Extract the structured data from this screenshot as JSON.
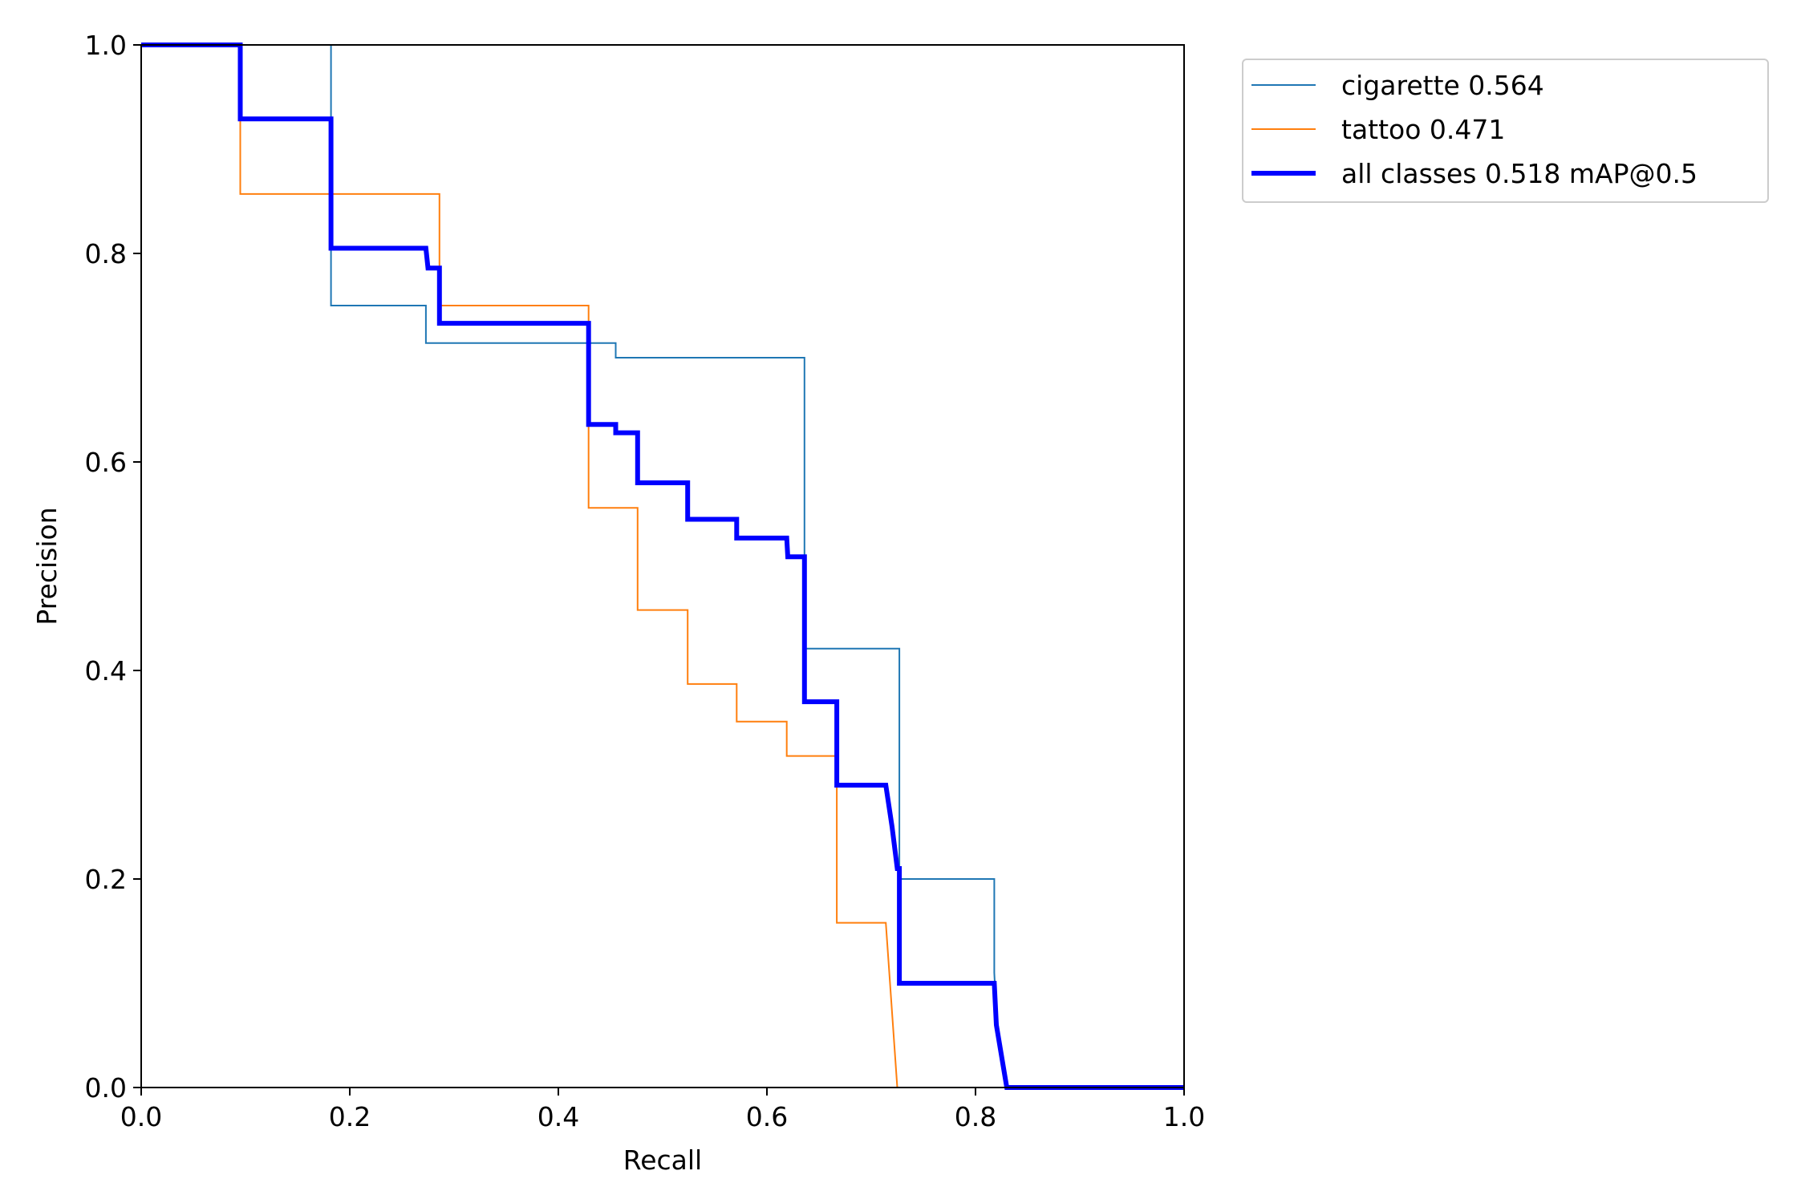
{
  "chart_data": {
    "type": "line",
    "title": "",
    "xlabel": "Recall",
    "ylabel": "Precision",
    "xlim": [
      0.0,
      1.0
    ],
    "ylim": [
      0.0,
      1.0
    ],
    "xticks": [
      "0.0",
      "0.2",
      "0.4",
      "0.6",
      "0.8",
      "1.0"
    ],
    "yticks": [
      "0.0",
      "0.2",
      "0.4",
      "0.6",
      "0.8",
      "1.0"
    ],
    "grid": false,
    "legend_position": "outside-top-right",
    "series": [
      {
        "name": "cigarette 0.564",
        "color": "#1f77b4",
        "emphasis": "thin",
        "x": [
          0.0,
          0.182,
          0.182,
          0.273,
          0.273,
          0.455,
          0.455,
          0.636,
          0.636,
          0.727,
          0.727,
          0.818,
          0.818,
          0.82,
          0.83,
          1.0
        ],
        "y": [
          1.0,
          1.0,
          0.75,
          0.75,
          0.714,
          0.714,
          0.7,
          0.7,
          0.421,
          0.421,
          0.2,
          0.2,
          0.11,
          0.07,
          0.0,
          0.0
        ]
      },
      {
        "name": "tattoo 0.471",
        "color": "#ff7f0e",
        "emphasis": "thin",
        "x": [
          0.0,
          0.095,
          0.095,
          0.286,
          0.286,
          0.429,
          0.429,
          0.476,
          0.476,
          0.524,
          0.524,
          0.571,
          0.571,
          0.619,
          0.619,
          0.667,
          0.667,
          0.714,
          0.725,
          1.0
        ],
        "y": [
          1.0,
          1.0,
          0.857,
          0.857,
          0.75,
          0.75,
          0.556,
          0.556,
          0.458,
          0.458,
          0.387,
          0.387,
          0.351,
          0.351,
          0.318,
          0.318,
          0.158,
          0.158,
          0.0,
          0.0
        ]
      },
      {
        "name": "all classes 0.518 mAP@0.5",
        "color": "#0000ff",
        "emphasis": "thick",
        "x": [
          0.0,
          0.095,
          0.095,
          0.182,
          0.182,
          0.273,
          0.275,
          0.286,
          0.286,
          0.429,
          0.429,
          0.455,
          0.455,
          0.476,
          0.476,
          0.524,
          0.524,
          0.571,
          0.571,
          0.619,
          0.62,
          0.636,
          0.636,
          0.667,
          0.667,
          0.714,
          0.72,
          0.725,
          0.727,
          0.727,
          0.818,
          0.818,
          0.82,
          0.83,
          1.0
        ],
        "y": [
          1.0,
          1.0,
          0.929,
          0.929,
          0.805,
          0.805,
          0.786,
          0.786,
          0.733,
          0.733,
          0.636,
          0.636,
          0.628,
          0.628,
          0.58,
          0.58,
          0.545,
          0.545,
          0.527,
          0.527,
          0.509,
          0.509,
          0.37,
          0.37,
          0.29,
          0.29,
          0.25,
          0.21,
          0.21,
          0.1,
          0.1,
          0.1,
          0.06,
          0.0,
          0.0
        ]
      }
    ]
  }
}
